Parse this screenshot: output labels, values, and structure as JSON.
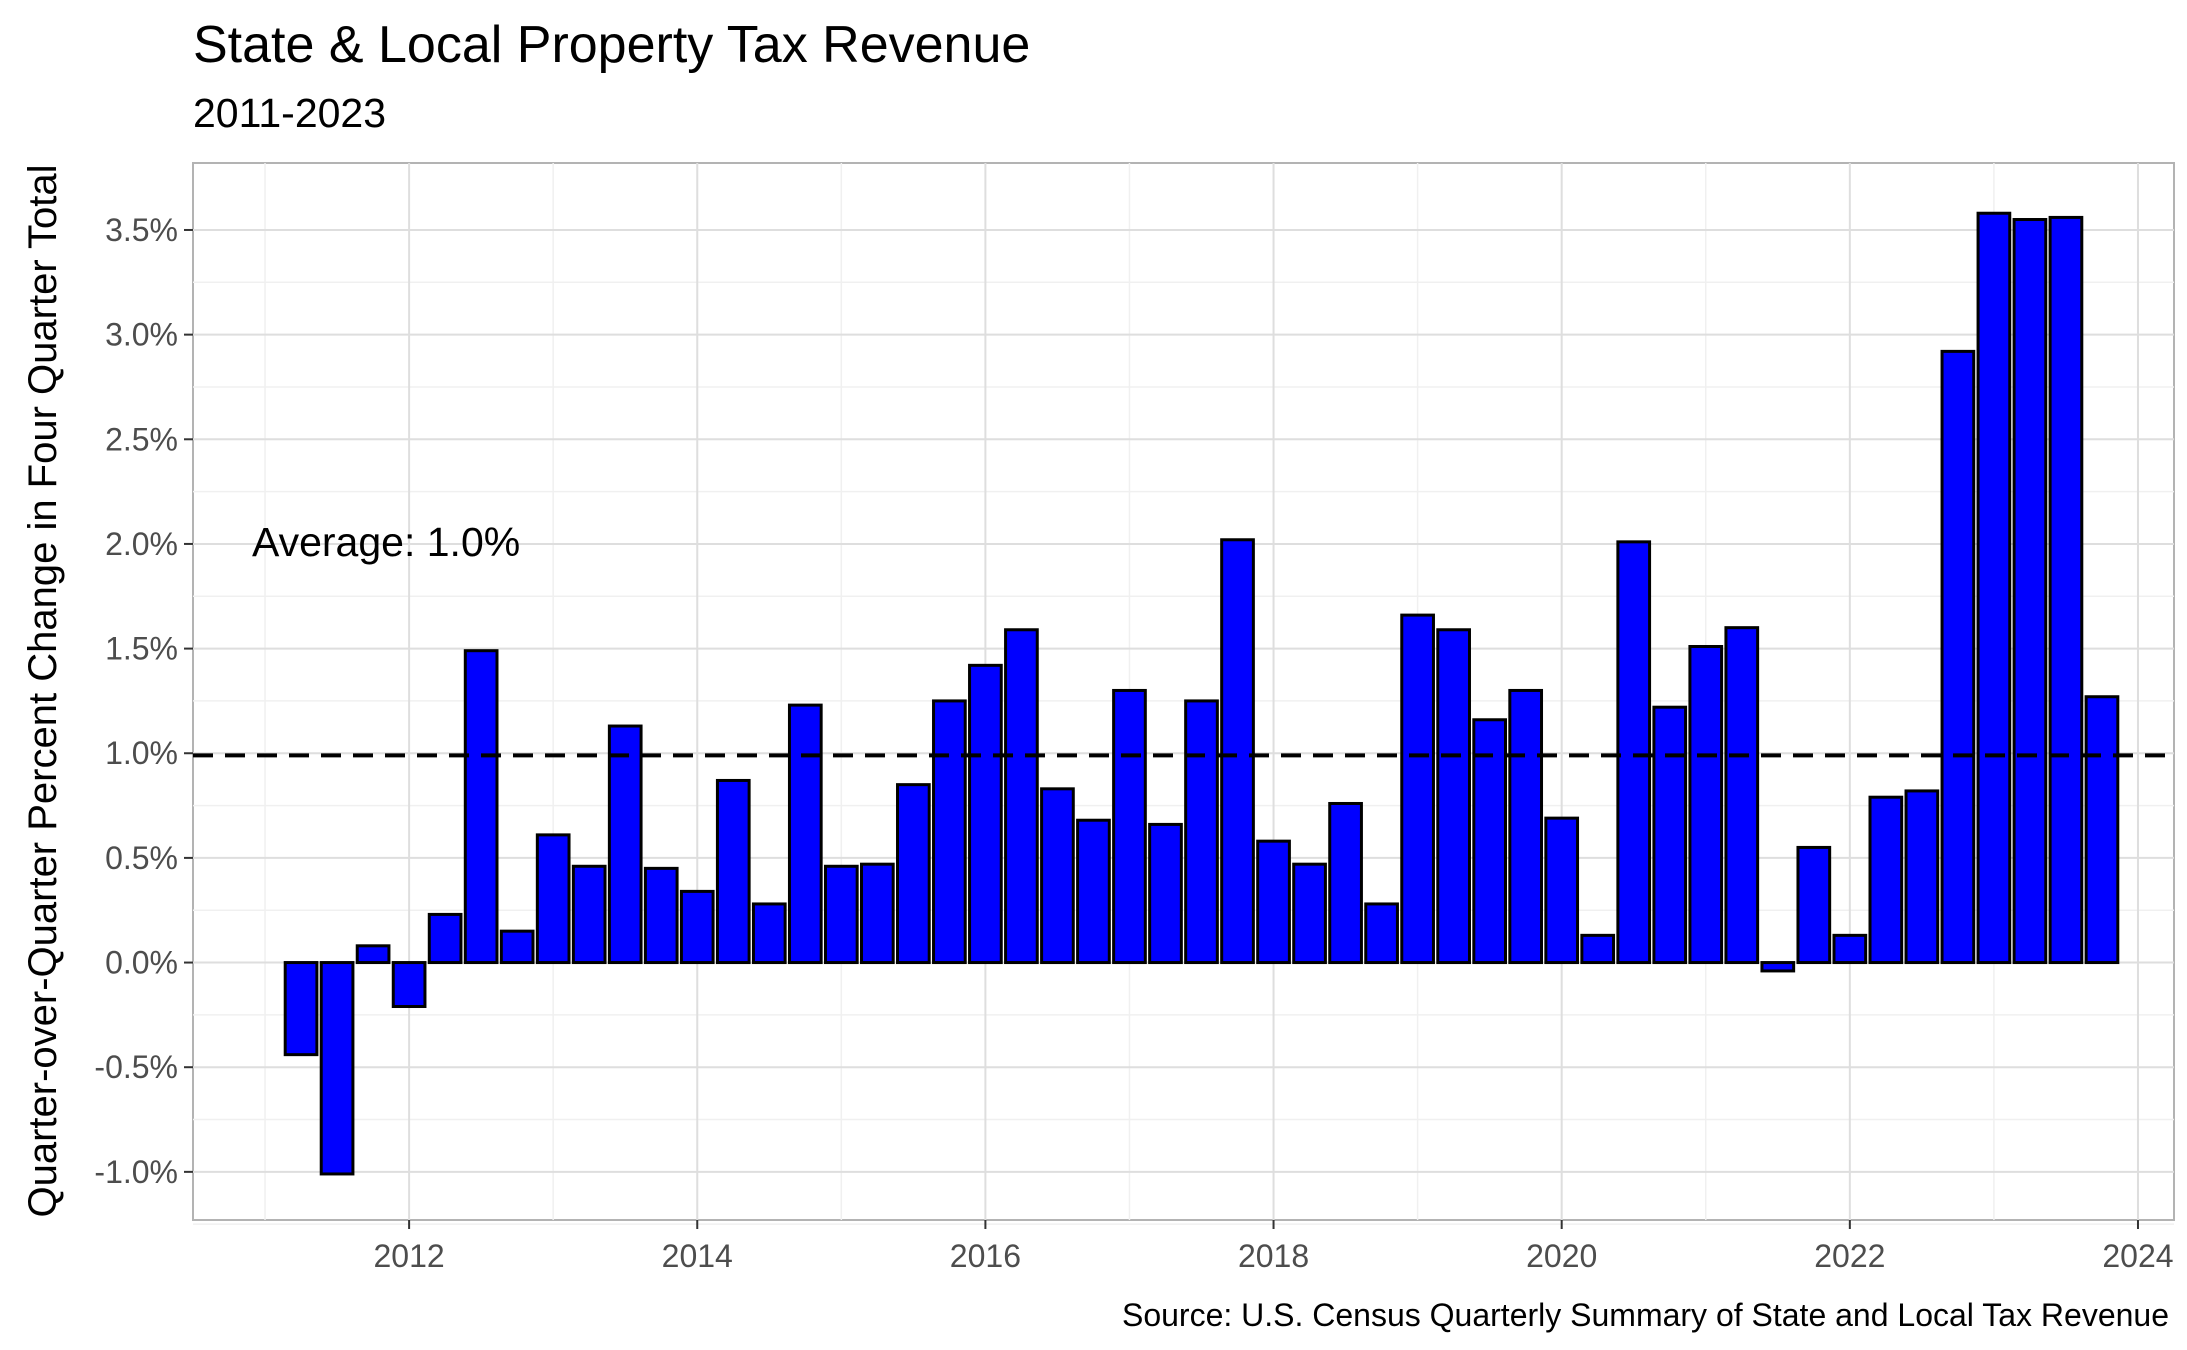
{
  "chart_data": {
    "type": "bar",
    "title": "State & Local Property Tax Revenue",
    "subtitle": "2011-2023",
    "ylabel": "Quarter-over-Quarter Percent Change in Four Quarter Total",
    "caption": "Source: U.S. Census Quarterly Summary of State and Local Tax Revenue",
    "annotation": "Average: 1.0%",
    "average_line": 0.99,
    "xlim": [
      2010.5,
      2024.25
    ],
    "ylim": [
      -1.23,
      3.82
    ],
    "x_ticks": [
      2012,
      2014,
      2016,
      2018,
      2020,
      2022,
      2024
    ],
    "x_tick_labels": [
      "2012",
      "2014",
      "2016",
      "2018",
      "2020",
      "2022",
      "2024"
    ],
    "y_ticks": [
      -1.0,
      -0.5,
      0.0,
      0.5,
      1.0,
      1.5,
      2.0,
      2.5,
      3.0,
      3.5
    ],
    "y_tick_labels": [
      "-1.0%",
      "-0.5%",
      "0.0%",
      "0.5%",
      "1.0%",
      "1.5%",
      "2.0%",
      "2.5%",
      "3.0%",
      "3.5%"
    ],
    "bar_color": "#0000ff",
    "bar_outline": "#000000",
    "grid": true,
    "x": [
      "2011 Q2",
      "2011 Q3",
      "2011 Q4",
      "2012 Q1",
      "2012 Q2",
      "2012 Q3",
      "2012 Q4",
      "2013 Q1",
      "2013 Q2",
      "2013 Q3",
      "2013 Q4",
      "2014 Q1",
      "2014 Q2",
      "2014 Q3",
      "2014 Q4",
      "2015 Q1",
      "2015 Q2",
      "2015 Q3",
      "2015 Q4",
      "2016 Q1",
      "2016 Q2",
      "2016 Q3",
      "2016 Q4",
      "2017 Q1",
      "2017 Q2",
      "2017 Q3",
      "2017 Q4",
      "2018 Q1",
      "2018 Q2",
      "2018 Q3",
      "2018 Q4",
      "2019 Q1",
      "2019 Q2",
      "2019 Q3",
      "2019 Q4",
      "2020 Q1",
      "2020 Q2",
      "2020 Q3",
      "2020 Q4",
      "2021 Q1",
      "2021 Q2",
      "2021 Q3",
      "2021 Q4",
      "2022 Q1",
      "2022 Q2",
      "2022 Q3",
      "2022 Q4",
      "2023 Q1",
      "2023 Q2",
      "2023 Q3",
      "2023 Q4"
    ],
    "dates": [
      2011.25,
      2011.5,
      2011.75,
      2012.0,
      2012.25,
      2012.5,
      2012.75,
      2013.0,
      2013.25,
      2013.5,
      2013.75,
      2014.0,
      2014.25,
      2014.5,
      2014.75,
      2015.0,
      2015.25,
      2015.5,
      2015.75,
      2016.0,
      2016.25,
      2016.5,
      2016.75,
      2017.0,
      2017.25,
      2017.5,
      2017.75,
      2018.0,
      2018.25,
      2018.5,
      2018.75,
      2019.0,
      2019.25,
      2019.5,
      2019.75,
      2020.0,
      2020.25,
      2020.5,
      2020.75,
      2021.0,
      2021.25,
      2021.5,
      2021.75,
      2022.0,
      2022.25,
      2022.5,
      2022.75,
      2023.0,
      2023.25,
      2023.5,
      2023.75
    ],
    "values": [
      -0.44,
      -1.01,
      0.08,
      -0.21,
      0.23,
      1.49,
      0.15,
      0.61,
      0.46,
      1.13,
      0.45,
      0.34,
      0.87,
      0.28,
      1.23,
      0.46,
      0.47,
      0.85,
      1.25,
      1.42,
      1.59,
      0.83,
      0.68,
      1.3,
      0.66,
      1.25,
      2.02,
      0.58,
      0.47,
      0.76,
      0.28,
      1.66,
      1.59,
      1.16,
      1.3,
      0.69,
      0.13,
      2.01,
      1.22,
      1.51,
      1.6,
      -0.04,
      0.55,
      0.13,
      0.79,
      0.82,
      2.92,
      3.58,
      3.55,
      3.56,
      1.27
    ]
  }
}
